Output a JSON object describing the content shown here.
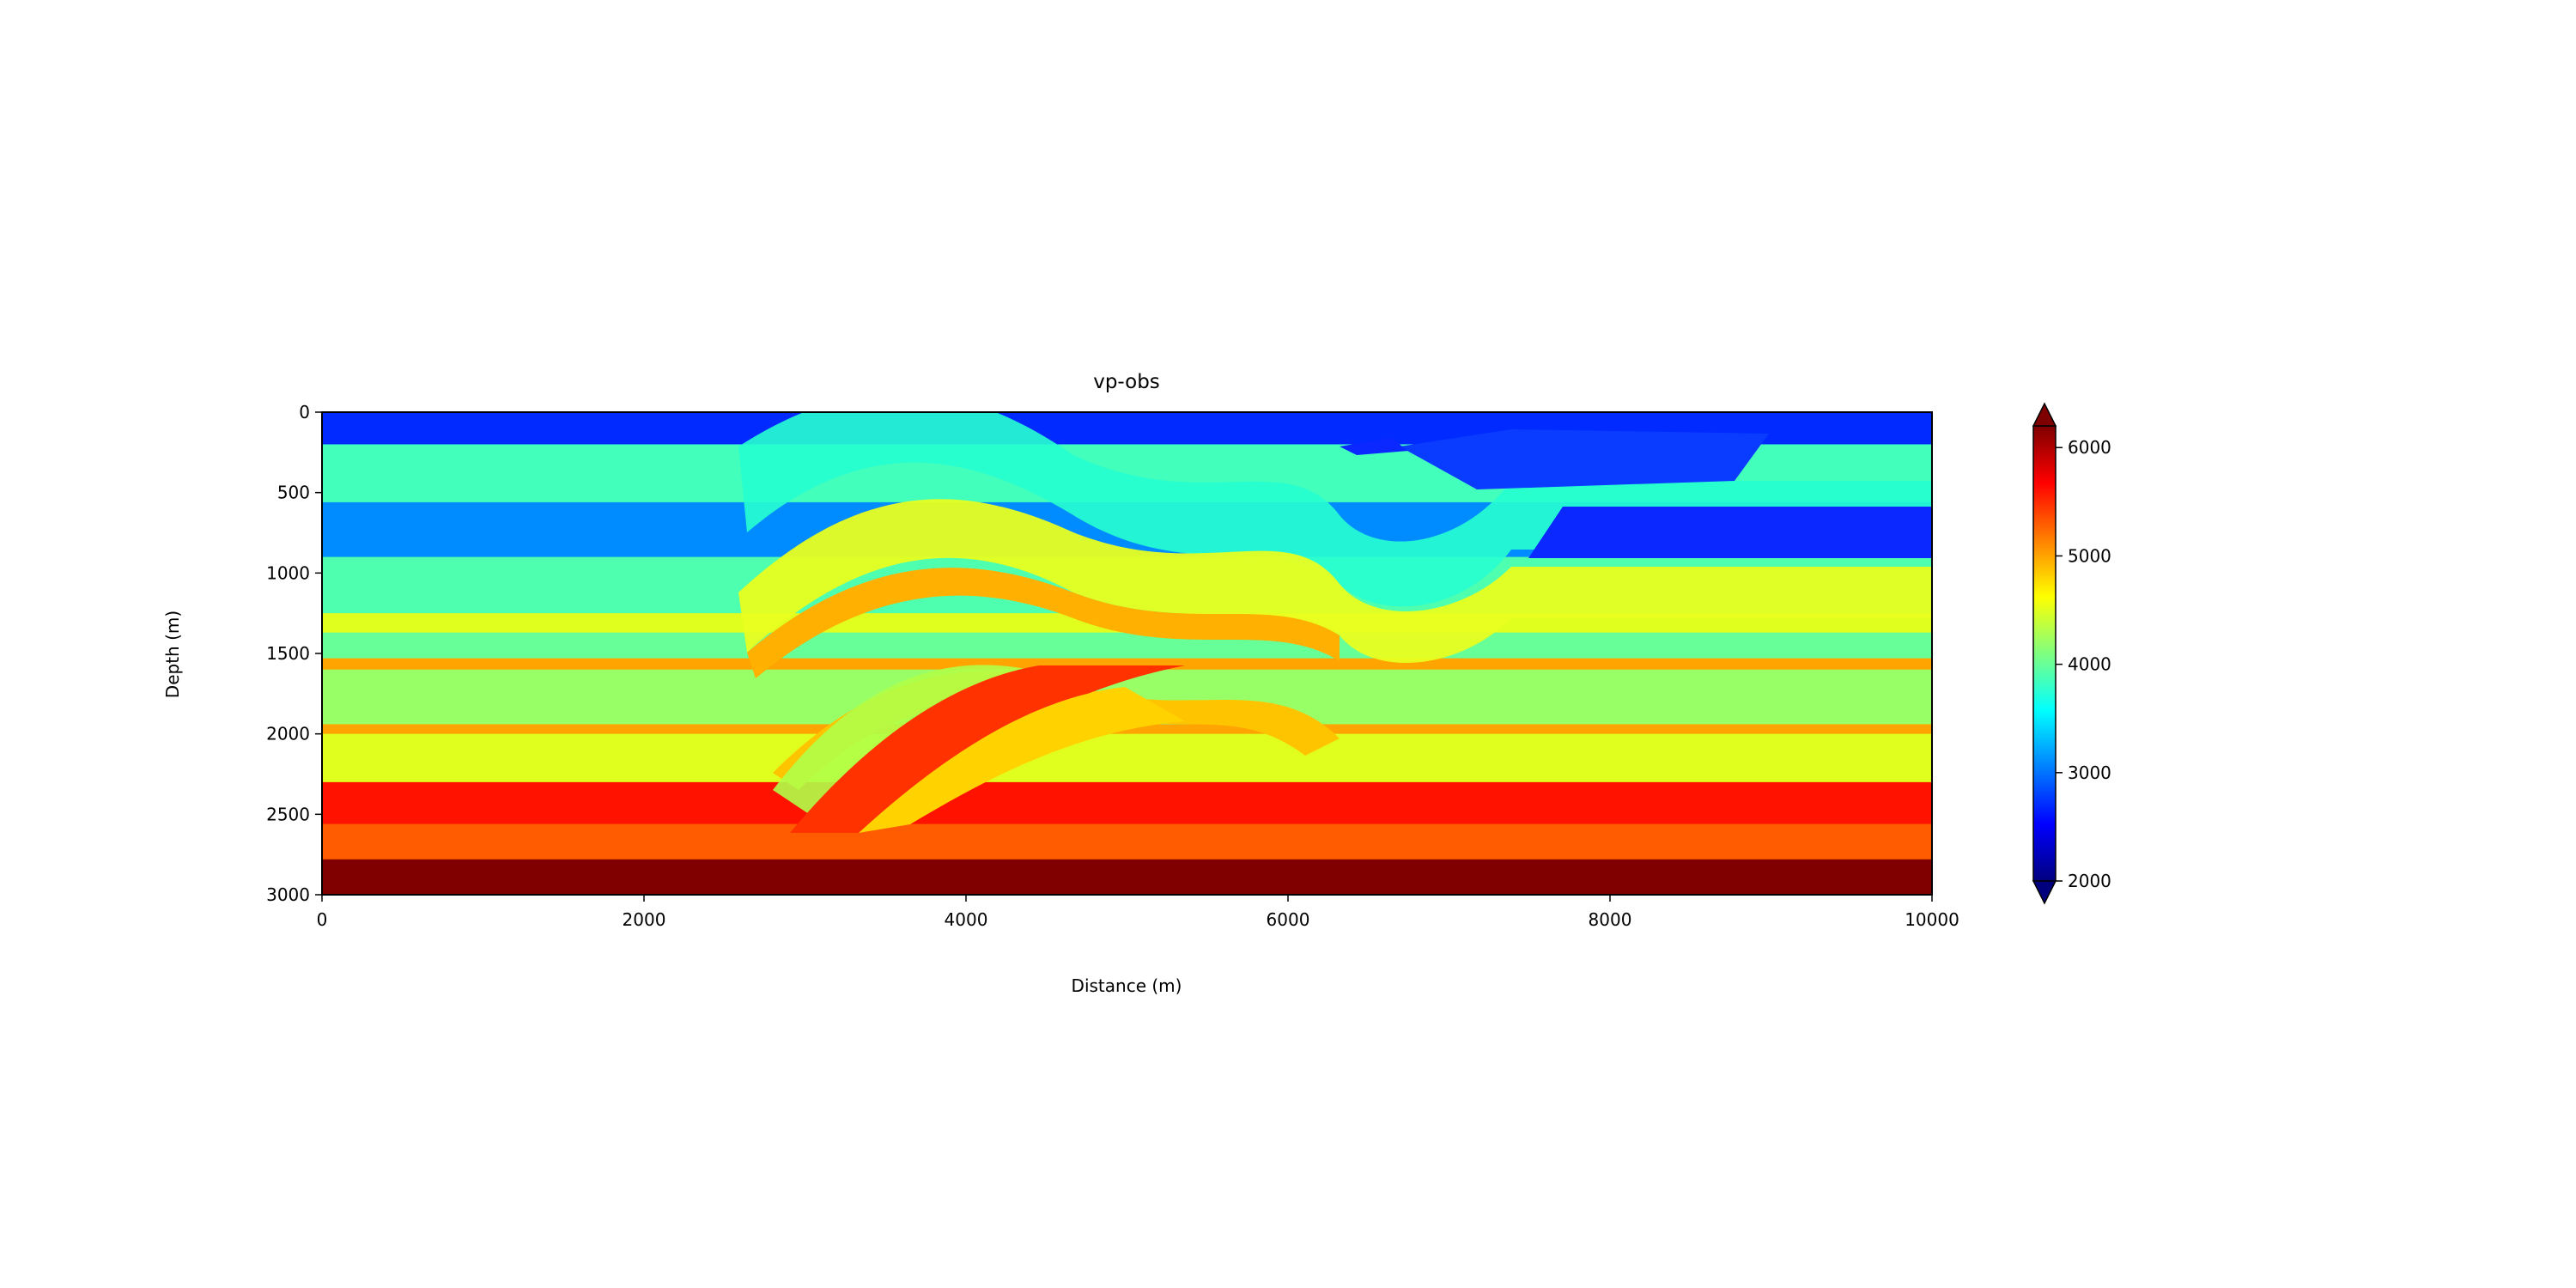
{
  "chart_data": {
    "type": "heatmap",
    "title": "vp-obs",
    "xlabel": "Distance (m)",
    "ylabel": "Depth (m)",
    "xlim": [
      0,
      10000
    ],
    "ylim": [
      3000,
      0
    ],
    "x_ticks": [
      0,
      2000,
      4000,
      6000,
      8000,
      10000
    ],
    "y_ticks": [
      0,
      500,
      1000,
      1500,
      2000,
      2500,
      3000
    ],
    "x_tick_labels": [
      "0",
      "2000",
      "4000",
      "6000",
      "8000",
      "10000"
    ],
    "y_tick_labels": [
      "0",
      "500",
      "1000",
      "1500",
      "2000",
      "2500",
      "3000"
    ],
    "colormap": "jet",
    "grid": false,
    "colorbar": {
      "vmin": 2000,
      "vmax": 6200,
      "extend": "both",
      "ticks": [
        2000,
        3000,
        4000,
        5000,
        6000
      ],
      "tick_labels": [
        "2000",
        "3000",
        "4000",
        "5000",
        "6000"
      ]
    },
    "layers_description_depth_ranges_m": [
      {
        "top": 0,
        "bottom": 200,
        "vp": 2700
      },
      {
        "top": 200,
        "bottom": 560,
        "vp": 3850
      },
      {
        "top": 560,
        "bottom": 900,
        "vp": 3100
      },
      {
        "top": 900,
        "bottom": 1250,
        "vp": 3900
      },
      {
        "top": 1250,
        "bottom": 1370,
        "vp": 4500
      },
      {
        "top": 1370,
        "bottom": 1530,
        "vp": 4000
      },
      {
        "top": 1530,
        "bottom": 1600,
        "vp": 5000
      },
      {
        "top": 1600,
        "bottom": 1940,
        "vp": 4200
      },
      {
        "top": 1940,
        "bottom": 2000,
        "vp": 5000
      },
      {
        "top": 2000,
        "bottom": 2300,
        "vp": 4500
      },
      {
        "top": 2300,
        "bottom": 2560,
        "vp": 5600
      },
      {
        "top": 2560,
        "bottom": 2780,
        "vp": 5300
      },
      {
        "top": 2780,
        "bottom": 3000,
        "vp": 6200
      }
    ]
  }
}
